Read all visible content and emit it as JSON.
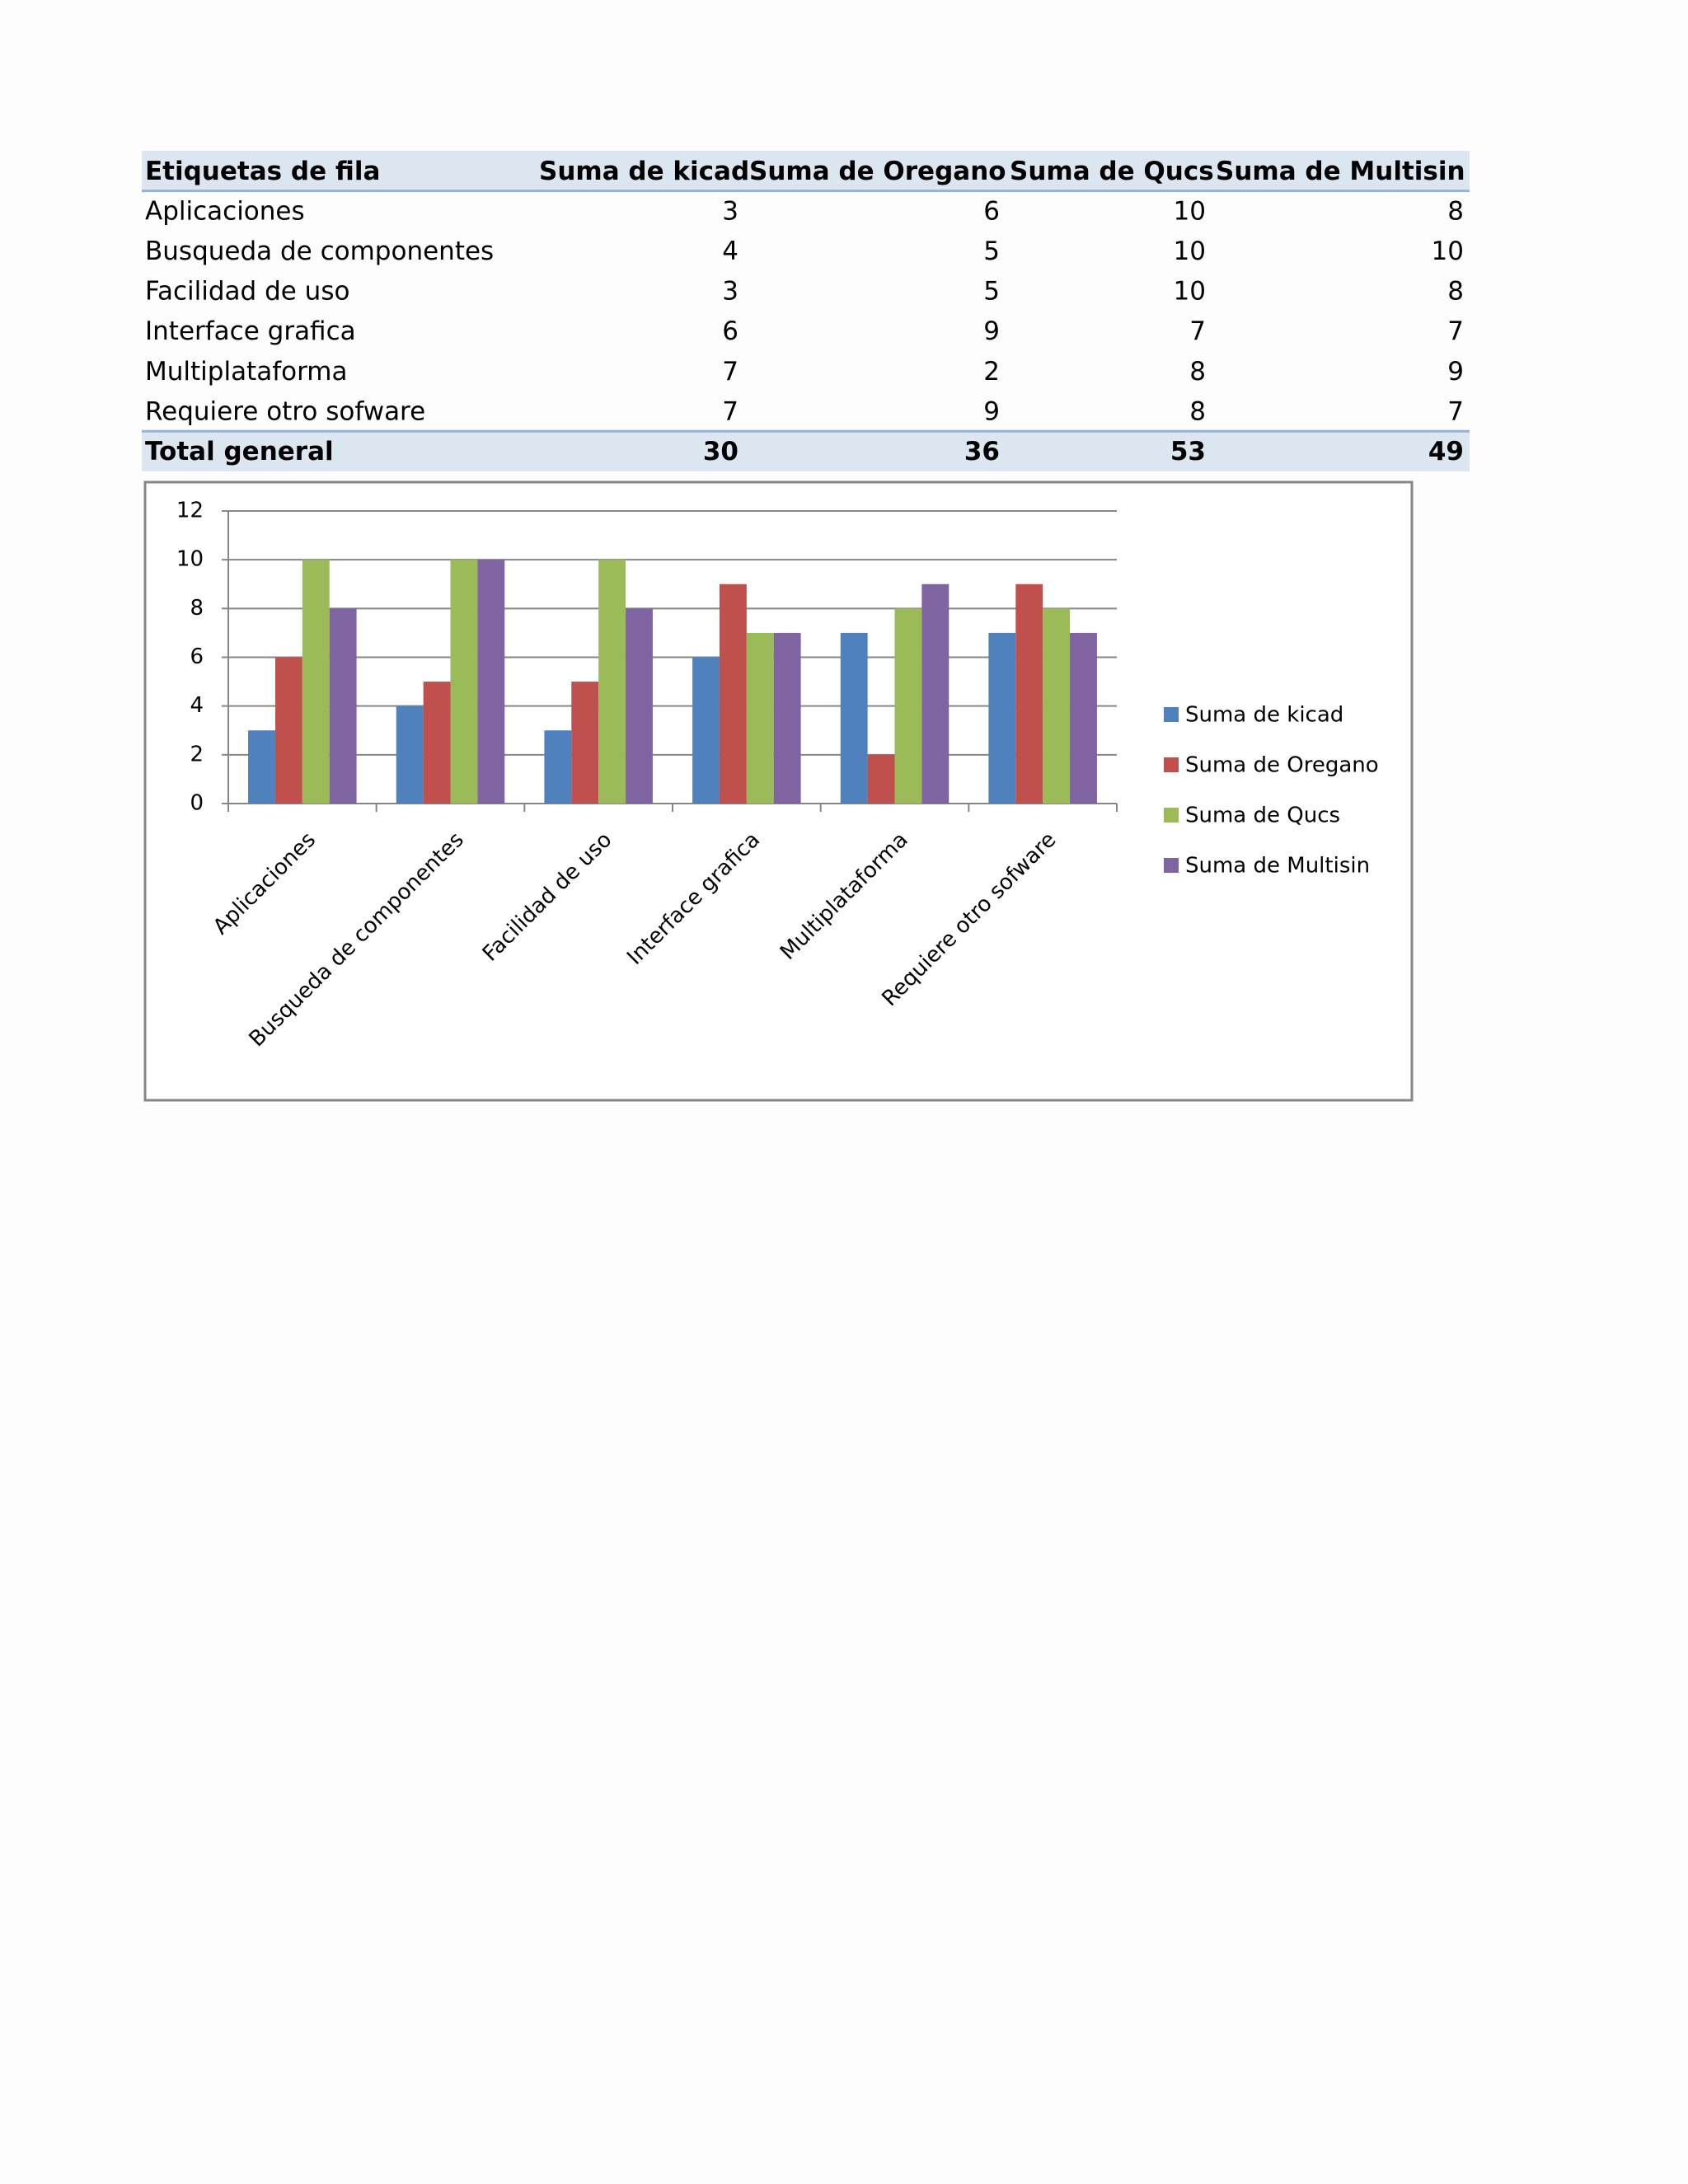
{
  "table": {
    "header": [
      "Etiquetas de fila",
      "Suma de kicad",
      "Suma de Oregano",
      "Suma de Qucs",
      "Suma de Multisin"
    ],
    "rows": [
      [
        "Aplicaciones",
        3,
        6,
        10,
        8
      ],
      [
        "Busqueda de componentes",
        4,
        5,
        10,
        10
      ],
      [
        "Facilidad de uso",
        3,
        5,
        10,
        8
      ],
      [
        "Interface grafica",
        6,
        9,
        7,
        7
      ],
      [
        "Multiplataforma",
        7,
        2,
        8,
        9
      ],
      [
        "Requiere otro sofware",
        7,
        9,
        8,
        7
      ]
    ],
    "total": [
      "Total general",
      30,
      36,
      53,
      49
    ]
  },
  "chart_data": {
    "type": "bar",
    "categories": [
      "Aplicaciones",
      "Busqueda de componentes",
      "Facilidad de uso",
      "Interface grafica",
      "Multiplataforma",
      "Requiere otro sofware"
    ],
    "series": [
      {
        "name": "Suma de kicad",
        "color": "#4f81bd",
        "values": [
          3,
          4,
          3,
          6,
          7,
          7
        ]
      },
      {
        "name": "Suma de Oregano",
        "color": "#c0504d",
        "values": [
          6,
          5,
          5,
          9,
          2,
          9
        ]
      },
      {
        "name": "Suma de Qucs",
        "color": "#9bbb59",
        "values": [
          10,
          10,
          10,
          7,
          8,
          8
        ]
      },
      {
        "name": "Suma de Multisin",
        "color": "#8064a2",
        "values": [
          8,
          10,
          8,
          7,
          9,
          7
        ]
      }
    ],
    "ylim": [
      0,
      12
    ],
    "yticks": [
      0,
      2,
      4,
      6,
      8,
      10,
      12
    ],
    "grid": true,
    "legend": "right"
  }
}
